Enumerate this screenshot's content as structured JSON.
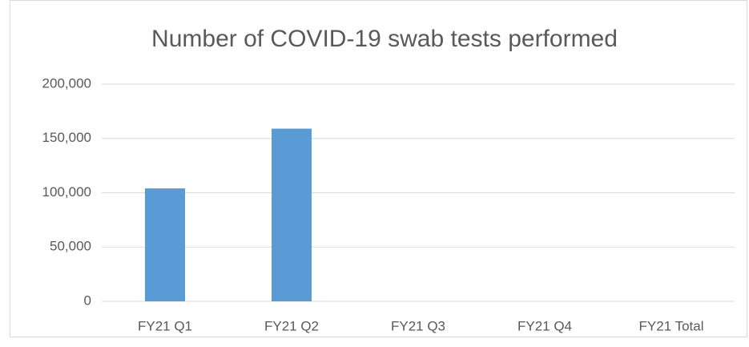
{
  "chart_data": {
    "type": "bar",
    "title": "Number of COVID-19 swab tests performed",
    "categories": [
      "FY21 Q1",
      "FY21 Q2",
      "FY21 Q3",
      "FY21 Q4",
      "FY21 Total"
    ],
    "values": [
      104000,
      159000,
      null,
      null,
      null
    ],
    "color": "#5b9bd5",
    "ylim": [
      0,
      200000
    ],
    "yticks": [
      0,
      {
        "value": 50000,
        "label": "50,000"
      },
      {
        "value": 100000,
        "label": "100,000"
      },
      {
        "value": 150000,
        "label": "150,000"
      },
      {
        "value": 200000,
        "label": "200,000"
      }
    ],
    "grid": true
  }
}
